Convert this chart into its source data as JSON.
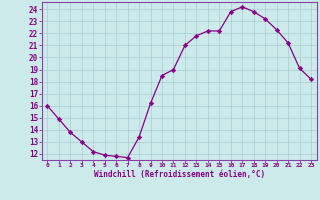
{
  "x": [
    0,
    1,
    2,
    3,
    4,
    5,
    6,
    7,
    8,
    9,
    10,
    11,
    12,
    13,
    14,
    15,
    16,
    17,
    18,
    19,
    20,
    21,
    22,
    23
  ],
  "y": [
    16.0,
    14.9,
    13.8,
    13.0,
    12.2,
    11.9,
    11.8,
    11.7,
    13.4,
    16.2,
    18.5,
    19.0,
    21.0,
    21.8,
    22.2,
    22.2,
    23.8,
    24.2,
    23.8,
    23.2,
    22.3,
    21.2,
    19.1,
    18.2
  ],
  "line_color": "#880088",
  "marker": "D",
  "marker_size": 2.2,
  "bg_color": "#cceaea",
  "grid_color": "#aacccc",
  "xlabel": "Windchill (Refroidissement éolien,°C)",
  "ylim": [
    11.5,
    24.6
  ],
  "xlim": [
    -0.5,
    23.5
  ],
  "yticks": [
    12,
    13,
    14,
    15,
    16,
    17,
    18,
    19,
    20,
    21,
    22,
    23,
    24
  ],
  "xticks": [
    0,
    1,
    2,
    3,
    4,
    5,
    6,
    7,
    8,
    9,
    10,
    11,
    12,
    13,
    14,
    15,
    16,
    17,
    18,
    19,
    20,
    21,
    22,
    23
  ],
  "tick_color": "#880088",
  "label_color": "#880088",
  "spine_color": "#8844aa",
  "line_width": 0.9
}
